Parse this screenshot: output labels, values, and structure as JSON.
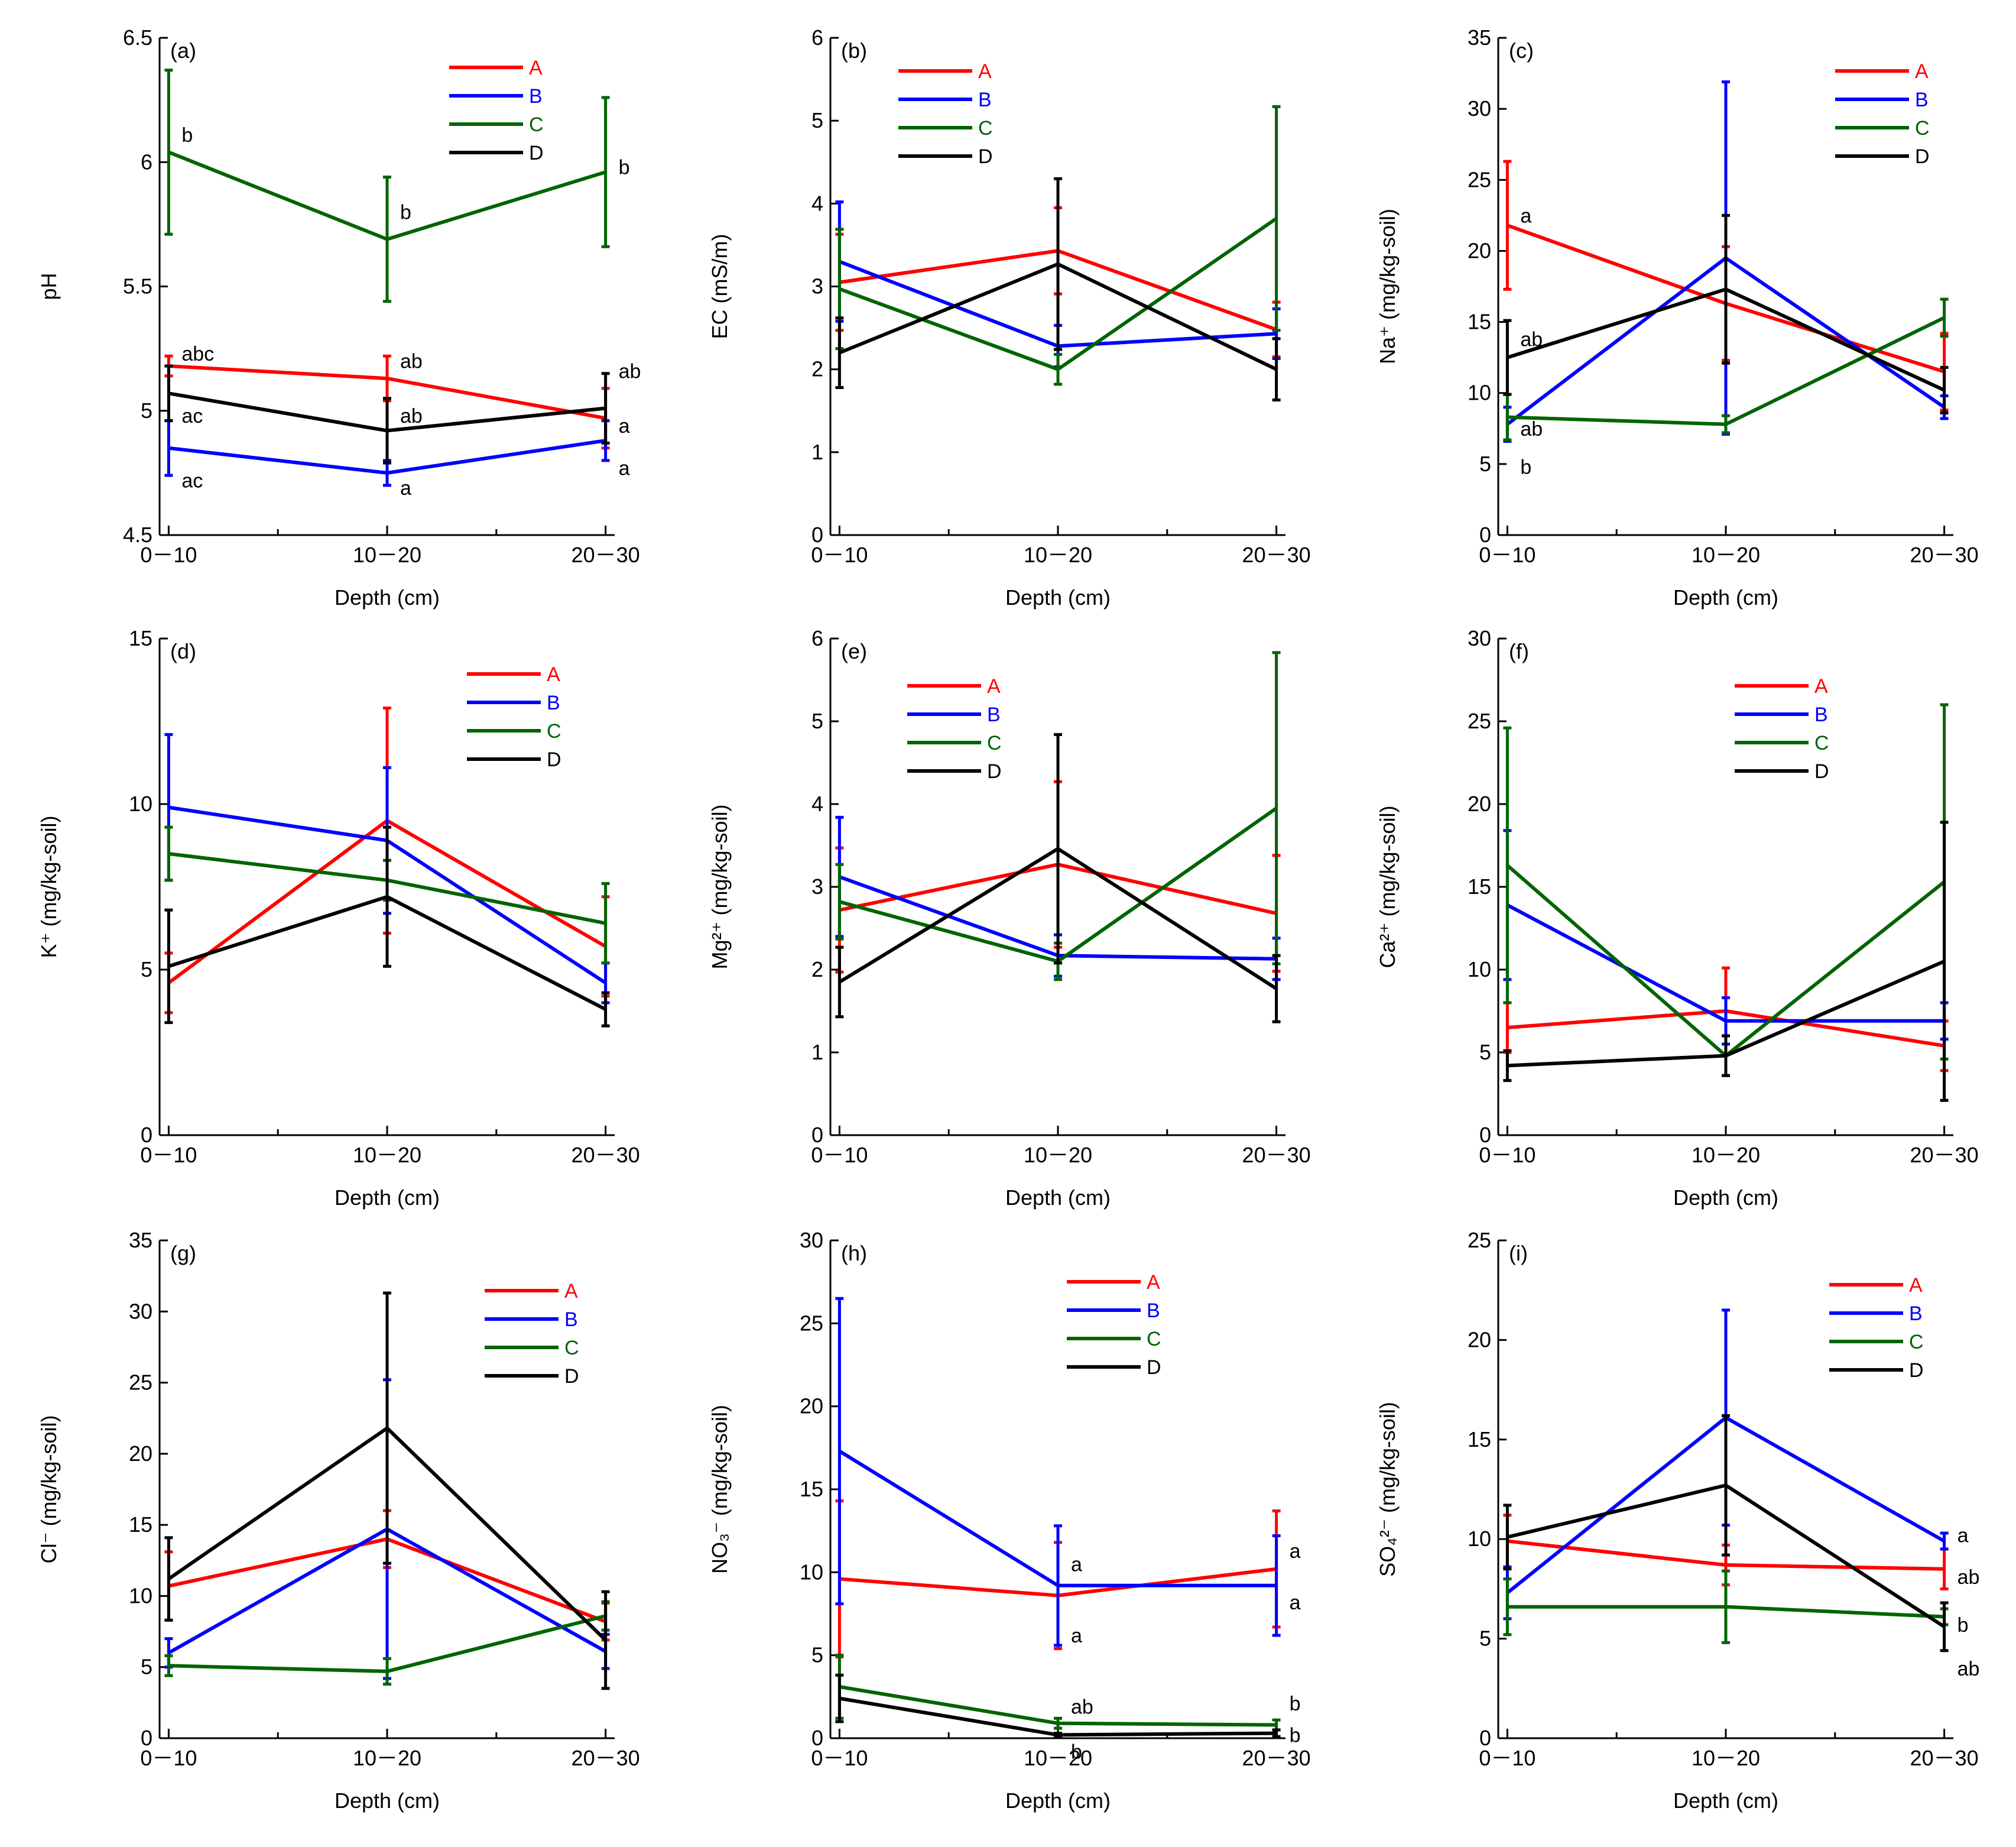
{
  "figure": {
    "series_names": [
      "A",
      "B",
      "C",
      "D"
    ],
    "series_colors": [
      "#ff0000",
      "#0000ff",
      "#006400",
      "#000000"
    ]
  },
  "chart_data": [
    {
      "type": "line",
      "panel": "(a)",
      "categories": [
        "0－10",
        "10－20",
        "20－30"
      ],
      "xlabel": "Depth (cm)",
      "ylabel": "pH",
      "ylim": [
        4.5,
        6.5
      ],
      "yticks": [
        4.5,
        5,
        5.5,
        6,
        6.5
      ],
      "ytick_labels": [
        "4.5",
        "5",
        "5.5",
        "6",
        "6.5"
      ],
      "series": [
        {
          "name": "A",
          "values": [
            5.18,
            5.13,
            4.97
          ],
          "errors": [
            0.04,
            0.09,
            0.12
          ]
        },
        {
          "name": "B",
          "values": [
            4.85,
            4.75,
            4.88
          ],
          "errors": [
            0.11,
            0.05,
            0.08
          ]
        },
        {
          "name": "C",
          "values": [
            6.04,
            5.69,
            5.96
          ],
          "errors": [
            0.33,
            0.25,
            0.3
          ]
        },
        {
          "name": "D",
          "values": [
            5.07,
            4.92,
            5.01
          ],
          "errors": [
            0.11,
            0.13,
            0.14
          ]
        }
      ],
      "annotations": [
        {
          "text": "b",
          "x": 0,
          "y": 6.11
        },
        {
          "text": "b",
          "x": 1,
          "y": 5.8
        },
        {
          "text": "b",
          "x": 2,
          "y": 5.98
        },
        {
          "text": "abc",
          "x": 0,
          "y": 5.23
        },
        {
          "text": "ab",
          "x": 1,
          "y": 5.2
        },
        {
          "text": "ab",
          "x": 2,
          "y": 5.16
        },
        {
          "text": "ac",
          "x": 0,
          "y": 4.98
        },
        {
          "text": "ab",
          "x": 1,
          "y": 4.98
        },
        {
          "text": "a",
          "x": 2,
          "y": 4.94
        },
        {
          "text": "ac",
          "x": 0,
          "y": 4.72
        },
        {
          "text": "a",
          "x": 1,
          "y": 4.69
        },
        {
          "text": "a",
          "x": 2,
          "y": 4.77
        }
      ]
    },
    {
      "type": "line",
      "panel": "(b)",
      "categories": [
        "0－10",
        "10－20",
        "20－30"
      ],
      "xlabel": "Depth (cm)",
      "ylabel": "EC (mS/m)",
      "ylim": [
        0,
        6
      ],
      "yticks": [
        0,
        1,
        2,
        3,
        4,
        5,
        6
      ],
      "ytick_labels": [
        "0",
        "1",
        "2",
        "3",
        "4",
        "5",
        "6"
      ],
      "series": [
        {
          "name": "A",
          "values": [
            3.05,
            3.43,
            2.48
          ],
          "errors": [
            0.58,
            0.52,
            0.33
          ]
        },
        {
          "name": "B",
          "values": [
            3.3,
            2.28,
            2.43
          ],
          "errors": [
            0.72,
            0.25,
            0.3
          ]
        },
        {
          "name": "C",
          "values": [
            2.97,
            2.0,
            3.82
          ],
          "errors": [
            0.72,
            0.18,
            1.35
          ]
        },
        {
          "name": "D",
          "values": [
            2.2,
            3.27,
            2.0
          ],
          "errors": [
            0.42,
            1.03,
            0.37
          ]
        }
      ],
      "annotations": []
    },
    {
      "type": "line",
      "panel": "(c)",
      "categories": [
        "0－10",
        "10－20",
        "20－30"
      ],
      "xlabel": "Depth (cm)",
      "ylabel": "Na⁺ (mg/kg-soil)",
      "ylim": [
        0,
        35
      ],
      "yticks": [
        0,
        5,
        10,
        15,
        20,
        25,
        30,
        35
      ],
      "ytick_labels": [
        "0",
        "5",
        "10",
        "15",
        "20",
        "25",
        "30",
        "35"
      ],
      "series": [
        {
          "name": "A",
          "values": [
            21.8,
            16.3,
            11.5
          ],
          "errors": [
            4.5,
            4.0,
            2.7
          ]
        },
        {
          "name": "B",
          "values": [
            7.8,
            19.5,
            9.0
          ],
          "errors": [
            1.2,
            12.4,
            0.8
          ]
        },
        {
          "name": "C",
          "values": [
            8.3,
            7.8,
            15.3
          ],
          "errors": [
            1.6,
            0.6,
            1.3
          ]
        },
        {
          "name": "D",
          "values": [
            12.5,
            17.3,
            10.2
          ],
          "errors": [
            2.6,
            5.2,
            1.6
          ]
        }
      ],
      "annotations": [
        {
          "text": "a",
          "x": 0,
          "y": 22.5
        },
        {
          "text": "ab",
          "x": 0,
          "y": 13.8
        },
        {
          "text": "ab",
          "x": 0,
          "y": 7.5
        },
        {
          "text": "b",
          "x": 0,
          "y": 4.8
        }
      ]
    },
    {
      "type": "line",
      "panel": "(d)",
      "categories": [
        "0－10",
        "10－20",
        "20－30"
      ],
      "xlabel": "Depth (cm)",
      "ylabel": "K⁺ (mg/kg-soil)",
      "ylim": [
        0,
        15
      ],
      "yticks": [
        0,
        5,
        10,
        15
      ],
      "ytick_labels": [
        "0",
        "5",
        "10",
        "15"
      ],
      "series": [
        {
          "name": "A",
          "values": [
            4.6,
            9.5,
            5.7
          ],
          "errors": [
            0.9,
            3.4,
            1.5
          ]
        },
        {
          "name": "B",
          "values": [
            9.9,
            8.9,
            4.6
          ],
          "errors": [
            2.2,
            2.2,
            0.6
          ]
        },
        {
          "name": "C",
          "values": [
            8.5,
            7.7,
            6.4
          ],
          "errors": [
            0.8,
            0.6,
            1.2
          ]
        },
        {
          "name": "D",
          "values": [
            5.1,
            7.2,
            3.8
          ],
          "errors": [
            1.7,
            2.1,
            0.5
          ]
        }
      ],
      "annotations": []
    },
    {
      "type": "line",
      "panel": "(e)",
      "categories": [
        "0－10",
        "10－20",
        "20－30"
      ],
      "xlabel": "Depth (cm)",
      "ylabel": "Mg²⁺ (mg/kg-soil)",
      "ylim": [
        0,
        6
      ],
      "yticks": [
        0,
        1,
        2,
        3,
        4,
        5,
        6
      ],
      "ytick_labels": [
        "0",
        "1",
        "2",
        "3",
        "4",
        "5",
        "6"
      ],
      "series": [
        {
          "name": "A",
          "values": [
            2.72,
            3.27,
            2.68
          ],
          "errors": [
            0.75,
            1.0,
            0.7
          ]
        },
        {
          "name": "B",
          "values": [
            3.12,
            2.17,
            2.13
          ],
          "errors": [
            0.72,
            0.25,
            0.25
          ]
        },
        {
          "name": "C",
          "values": [
            2.82,
            2.1,
            3.95
          ],
          "errors": [
            0.45,
            0.22,
            1.88
          ]
        },
        {
          "name": "D",
          "values": [
            1.85,
            3.46,
            1.77
          ],
          "errors": [
            0.42,
            1.38,
            0.4
          ]
        }
      ],
      "annotations": []
    },
    {
      "type": "line",
      "panel": "(f)",
      "categories": [
        "0－10",
        "10－20",
        "20－30"
      ],
      "xlabel": "Depth (cm)",
      "ylabel": "Ca²⁺ (mg/kg-soil)",
      "ylim": [
        0,
        30
      ],
      "yticks": [
        0,
        5,
        10,
        15,
        20,
        25,
        30
      ],
      "ytick_labels": [
        "0",
        "5",
        "10",
        "15",
        "20",
        "25",
        "30"
      ],
      "series": [
        {
          "name": "A",
          "values": [
            6.5,
            7.5,
            5.4
          ],
          "errors": [
            1.5,
            2.6,
            1.5
          ]
        },
        {
          "name": "B",
          "values": [
            13.9,
            6.9,
            6.9
          ],
          "errors": [
            4.5,
            1.4,
            1.1
          ]
        },
        {
          "name": "C",
          "values": [
            16.3,
            4.8,
            15.3
          ],
          "errors": [
            8.3,
            1.2,
            10.7
          ]
        },
        {
          "name": "D",
          "values": [
            4.2,
            4.8,
            10.5
          ],
          "errors": [
            0.9,
            1.2,
            8.4
          ]
        }
      ],
      "annotations": []
    },
    {
      "type": "line",
      "panel": "(g)",
      "categories": [
        "0－10",
        "10－20",
        "20－30"
      ],
      "xlabel": "Depth (cm)",
      "ylabel": "Cl⁻ (mg/kg-soil)",
      "ylim": [
        0,
        35
      ],
      "yticks": [
        0,
        5,
        10,
        15,
        20,
        25,
        30,
        35
      ],
      "ytick_labels": [
        "0",
        "5",
        "10",
        "15",
        "20",
        "25",
        "30",
        "35"
      ],
      "series": [
        {
          "name": "A",
          "values": [
            10.7,
            14.0,
            8.2
          ],
          "errors": [
            2.4,
            2.0,
            1.3
          ]
        },
        {
          "name": "B",
          "values": [
            6.0,
            14.7,
            6.1
          ],
          "errors": [
            1.0,
            10.5,
            1.2
          ]
        },
        {
          "name": "C",
          "values": [
            5.1,
            4.7,
            8.6
          ],
          "errors": [
            0.7,
            0.9,
            1.0
          ]
        },
        {
          "name": "D",
          "values": [
            11.2,
            21.8,
            6.9
          ],
          "errors": [
            2.9,
            9.5,
            3.4
          ]
        }
      ],
      "annotations": []
    },
    {
      "type": "line",
      "panel": "(h)",
      "categories": [
        "0－10",
        "10－20",
        "20－30"
      ],
      "xlabel": "Depth (cm)",
      "ylabel": "NO₃⁻ (mg/kg-soil)",
      "ylim": [
        0,
        30
      ],
      "yticks": [
        0,
        5,
        10,
        15,
        20,
        25,
        30
      ],
      "ytick_labels": [
        "0",
        "5",
        "10",
        "15",
        "20",
        "25",
        "30"
      ],
      "series": [
        {
          "name": "A",
          "values": [
            9.6,
            8.6,
            10.2
          ],
          "errors": [
            4.7,
            3.2,
            3.5
          ]
        },
        {
          "name": "B",
          "values": [
            17.3,
            9.2,
            9.2
          ],
          "errors": [
            9.2,
            3.6,
            3.0
          ]
        },
        {
          "name": "C",
          "values": [
            3.1,
            0.9,
            0.8
          ],
          "errors": [
            1.9,
            0.3,
            0.3
          ]
        },
        {
          "name": "D",
          "values": [
            2.4,
            0.2,
            0.3
          ],
          "errors": [
            1.4,
            0.1,
            0.2
          ]
        }
      ],
      "annotations": [
        {
          "text": "a",
          "x": 1,
          "y": 10.5
        },
        {
          "text": "a",
          "x": 1,
          "y": 6.2
        },
        {
          "text": "ab",
          "x": 1,
          "y": 1.9
        },
        {
          "text": "b",
          "x": 1,
          "y": -0.8
        },
        {
          "text": "a",
          "x": 2,
          "y": 11.3
        },
        {
          "text": "a",
          "x": 2,
          "y": 8.2
        },
        {
          "text": "b",
          "x": 2,
          "y": 2.1
        },
        {
          "text": "b",
          "x": 2,
          "y": 0.2
        }
      ]
    },
    {
      "type": "line",
      "panel": "(i)",
      "categories": [
        "0－10",
        "10－20",
        "20－30"
      ],
      "xlabel": "Depth (cm)",
      "ylabel": "SO₄²⁻ (mg/kg-soil)",
      "ylim": [
        0,
        25
      ],
      "yticks": [
        0,
        5,
        10,
        15,
        20,
        25
      ],
      "ytick_labels": [
        "0",
        "5",
        "10",
        "15",
        "20",
        "25"
      ],
      "series": [
        {
          "name": "A",
          "values": [
            9.9,
            8.7,
            8.5
          ],
          "errors": [
            1.3,
            1.0,
            1.0
          ]
        },
        {
          "name": "B",
          "values": [
            7.3,
            16.1,
            9.9
          ],
          "errors": [
            1.3,
            5.4,
            0.4
          ]
        },
        {
          "name": "C",
          "values": [
            6.6,
            6.6,
            6.1
          ],
          "errors": [
            1.4,
            1.8,
            0.4
          ]
        },
        {
          "name": "D",
          "values": [
            10.1,
            12.7,
            5.6
          ],
          "errors": [
            1.6,
            3.5,
            1.2
          ]
        }
      ],
      "annotations": [
        {
          "text": "a",
          "x": 2,
          "y": 10.2
        },
        {
          "text": "ab",
          "x": 2,
          "y": 8.1
        },
        {
          "text": "b",
          "x": 2,
          "y": 5.7
        },
        {
          "text": "ab",
          "x": 2,
          "y": 3.5
        }
      ]
    }
  ]
}
